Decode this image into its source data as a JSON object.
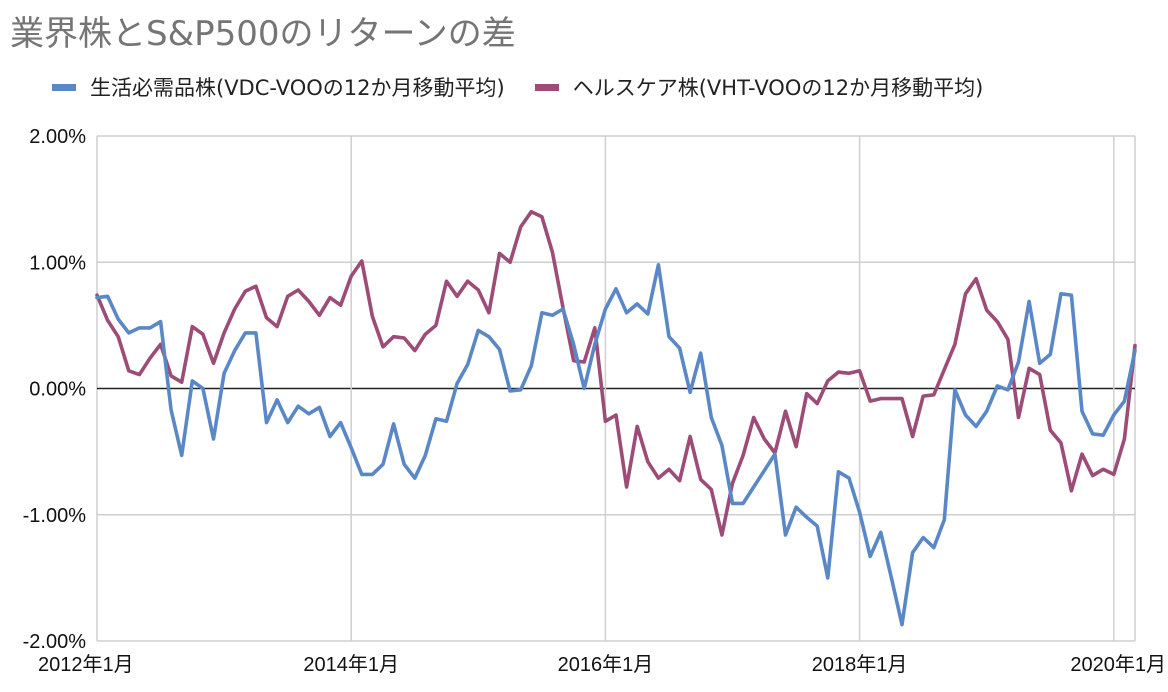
{
  "chart_data": {
    "type": "line",
    "title": "業界株とS&P500のリターンの差",
    "ylim": [
      -0.02,
      0.02
    ],
    "y_ticks": [
      "2.00%",
      "1.00%",
      "0.00%",
      "-1.00%",
      "-2.00%"
    ],
    "y_tick_values": [
      0.02,
      0.01,
      0,
      -0.01,
      -0.02
    ],
    "x_ticks": [
      "2012年1月",
      "2014年1月",
      "2016年1月",
      "2018年1月",
      "2020年1月"
    ],
    "x_tick_months": [
      0,
      24,
      48,
      72,
      96
    ],
    "x_months_total": 98,
    "grid": true,
    "legend_position": "top",
    "series": [
      {
        "name": "生活必需品株(VDC-VOOの12か月移動平均)",
        "color": "#5a88c6",
        "values": [
          0.0072,
          0.0073,
          0.0055,
          0.0044,
          0.0048,
          0.0048,
          0.0053,
          -0.0017,
          -0.0053,
          0.0006,
          0.0,
          -0.004,
          0.0012,
          0.003,
          0.0044,
          0.0044,
          -0.0027,
          -0.0009,
          -0.0027,
          -0.0014,
          -0.002,
          -0.0015,
          -0.0038,
          -0.0027,
          -0.0047,
          -0.0068,
          -0.0068,
          -0.006,
          -0.0028,
          -0.006,
          -0.0071,
          -0.0053,
          -0.0024,
          -0.0026,
          0.0004,
          0.0019,
          0.0046,
          0.0041,
          0.0031,
          -0.0002,
          -0.0001,
          0.0018,
          0.006,
          0.0058,
          0.0063,
          0.0035,
          0.0,
          0.0035,
          0.0063,
          0.0079,
          0.006,
          0.0067,
          0.0059,
          0.0098,
          0.0041,
          0.0032,
          -0.0003,
          0.0028,
          -0.0023,
          -0.0045,
          -0.0091,
          -0.0091,
          -0.0078,
          -0.0065,
          -0.0052,
          -0.0116,
          -0.0094,
          -0.0102,
          -0.0109,
          -0.015,
          -0.0066,
          -0.0071,
          -0.0098,
          -0.0133,
          -0.0114,
          -0.015,
          -0.0187,
          -0.013,
          -0.0118,
          -0.0126,
          -0.0104,
          -0.0001,
          -0.0021,
          -0.003,
          -0.0018,
          0.0002,
          -0.0001,
          0.0021,
          0.0069,
          0.002,
          0.0027,
          0.0075,
          0.0074,
          -0.0018,
          -0.0036,
          -0.0037,
          -0.0021,
          -0.001,
          0.003
        ]
      },
      {
        "name": "ヘルスケア株(VHT-VOOの12か月移動平均)",
        "color": "#9c4c77",
        "values": [
          0.0074,
          0.0054,
          0.0041,
          0.0014,
          0.0011,
          0.0024,
          0.0035,
          0.001,
          0.0005,
          0.0049,
          0.0043,
          0.002,
          0.0044,
          0.0063,
          0.0077,
          0.0081,
          0.0056,
          0.0049,
          0.0073,
          0.0078,
          0.0069,
          0.0058,
          0.0072,
          0.0066,
          0.0089,
          0.0101,
          0.0057,
          0.0033,
          0.0041,
          0.004,
          0.003,
          0.0043,
          0.005,
          0.0085,
          0.0073,
          0.0085,
          0.0078,
          0.006,
          0.0107,
          0.01,
          0.0128,
          0.014,
          0.0136,
          0.0108,
          0.0064,
          0.0022,
          0.0021,
          0.0048,
          -0.0026,
          -0.0021,
          -0.0078,
          -0.003,
          -0.0058,
          -0.0071,
          -0.0064,
          -0.0073,
          -0.0038,
          -0.0072,
          -0.008,
          -0.0116,
          -0.0075,
          -0.0053,
          -0.0023,
          -0.004,
          -0.0051,
          -0.0018,
          -0.0046,
          -0.0004,
          -0.0012,
          0.0006,
          0.0013,
          0.0012,
          0.0014,
          -0.001,
          -0.0008,
          -0.0008,
          -0.0008,
          -0.0038,
          -0.0006,
          -0.0005,
          0.0015,
          0.0035,
          0.0075,
          0.0087,
          0.0062,
          0.0053,
          0.0039,
          -0.0023,
          0.0016,
          0.0011,
          -0.0033,
          -0.0043,
          -0.0081,
          -0.0052,
          -0.0069,
          -0.0064,
          -0.0068,
          -0.004,
          0.0034
        ]
      }
    ]
  }
}
